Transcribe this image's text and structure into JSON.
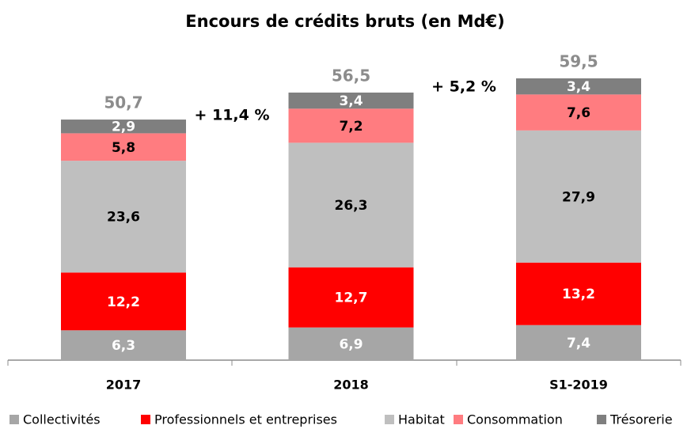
{
  "chart_data": {
    "type": "stacked-bar",
    "title": "Encours de crédits bruts (en Md€)",
    "categories": [
      "2017",
      "2018",
      "S1-2019"
    ],
    "series": [
      {
        "name": "Collectivités",
        "color": "#a6a6a6",
        "label_color": "#ffffff",
        "values": [
          6.3,
          6.9,
          7.4
        ],
        "value_labels": [
          "6,3",
          "6,9",
          "7,4"
        ]
      },
      {
        "name": "Professionnels et entreprises",
        "color": "#ff0000",
        "label_color": "#ffffff",
        "values": [
          12.2,
          12.7,
          13.2
        ],
        "value_labels": [
          "12,2",
          "12,7",
          "13,2"
        ]
      },
      {
        "name": "Habitat",
        "color": "#bfbfbf",
        "label_color": "#000000",
        "values": [
          23.6,
          26.3,
          27.9
        ],
        "value_labels": [
          "23,6",
          "26,3",
          "27,9"
        ]
      },
      {
        "name": "Consommation",
        "color": "#ff7c80",
        "label_color": "#000000",
        "values": [
          5.8,
          7.2,
          7.6
        ],
        "value_labels": [
          "5,8",
          "7,2",
          "7,6"
        ]
      },
      {
        "name": "Trésorerie",
        "color": "#7f7f7f",
        "label_color": "#ffffff",
        "values": [
          2.9,
          3.4,
          3.4
        ],
        "value_labels": [
          "2,9",
          "3,4",
          "3,4"
        ]
      }
    ],
    "totals": [
      50.7,
      56.5,
      59.5
    ],
    "total_labels": [
      "50,7",
      "56,5",
      "59,5"
    ],
    "annotations": [
      "+ 11,4 %",
      "+ 5,2 %"
    ]
  }
}
